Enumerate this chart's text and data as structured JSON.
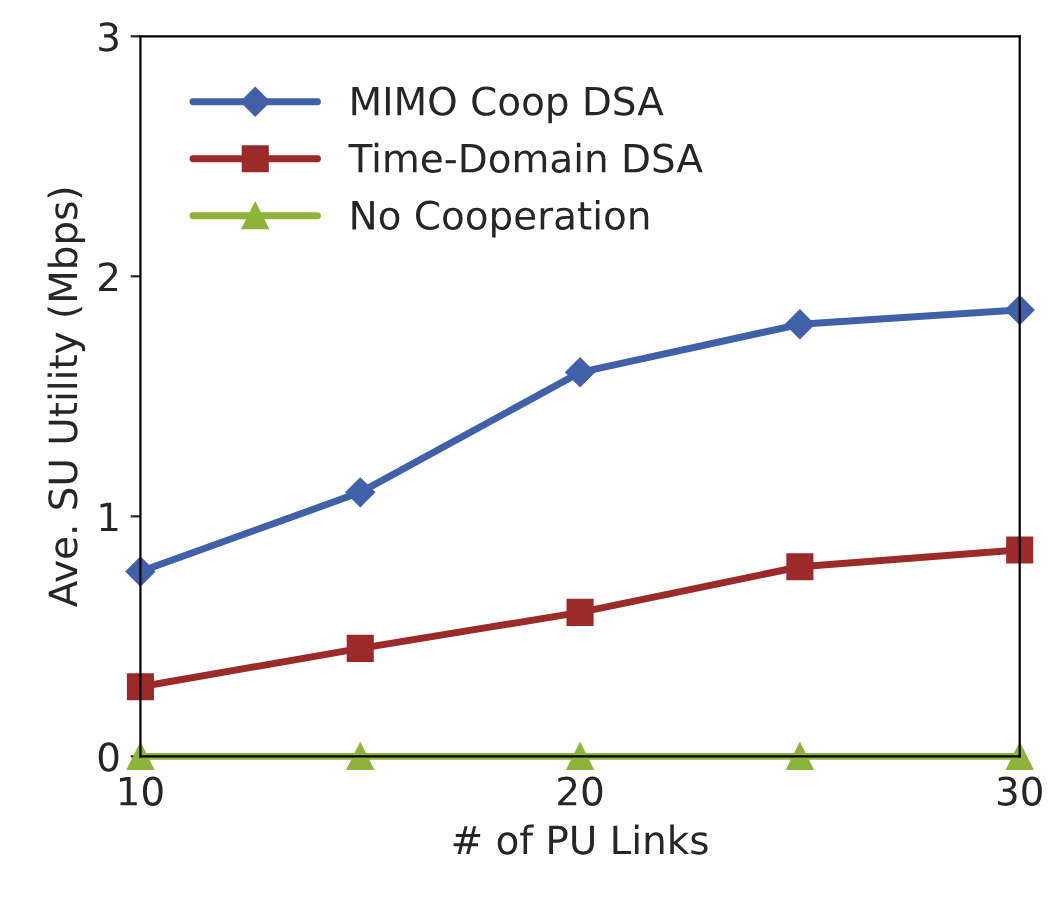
{
  "chart_data": {
    "type": "line",
    "xlabel": "# of PU Links",
    "ylabel": "Ave. SU Utility (Mbps)",
    "x": [
      10,
      15,
      20,
      25,
      30
    ],
    "series": [
      {
        "name": "MIMO Coop DSA",
        "color": "#4060a8",
        "values": [
          0.77,
          1.1,
          1.6,
          1.8,
          1.86
        ],
        "marker": "diamond"
      },
      {
        "name": "Time-Domain DSA",
        "color": "#9c2a28",
        "values": [
          0.29,
          0.45,
          0.6,
          0.79,
          0.86
        ],
        "marker": "square"
      },
      {
        "name": "No Cooperation",
        "color": "#8db33a",
        "values": [
          0,
          0,
          0,
          0,
          0
        ],
        "marker": "triangle"
      }
    ],
    "xlim": [
      10,
      30
    ],
    "xticks": [
      10,
      20,
      30
    ],
    "ylim": [
      0,
      3
    ],
    "yticks": [
      0,
      1,
      2,
      3
    ],
    "legend": "top left",
    "grid": false
  }
}
